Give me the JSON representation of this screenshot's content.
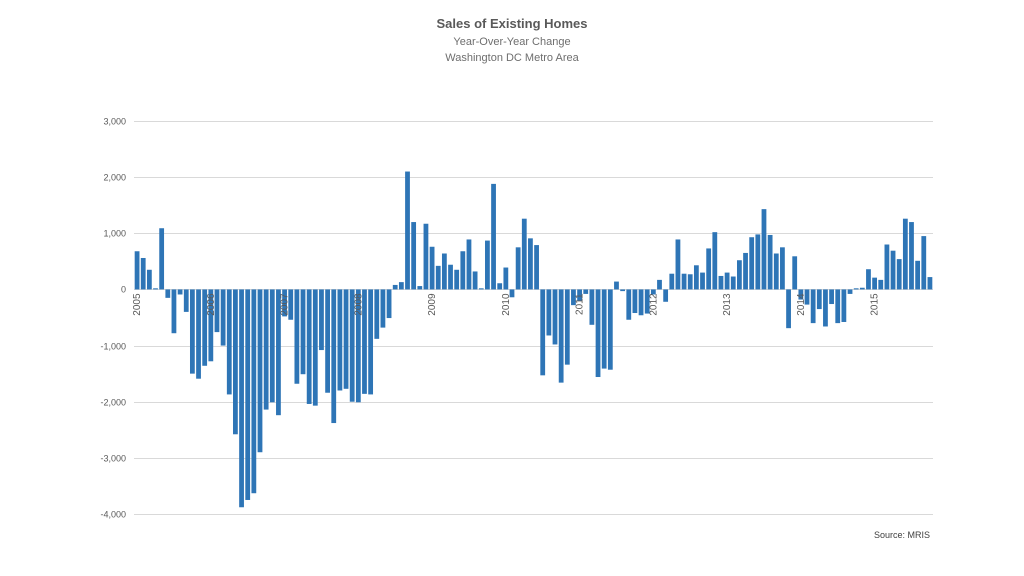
{
  "colors": {
    "bar": "#2e75b6",
    "grid": "#d9d9d9",
    "text": "#595959",
    "background": "#ffffff"
  },
  "chart_data": {
    "type": "bar",
    "title": "Sales of Existing Homes",
    "subtitle": "Year-Over-Year Change",
    "subtitle2": "Washington DC Metro Area",
    "source": "Source: MRIS",
    "ylim": [
      -4000,
      3000
    ],
    "yticks": [
      3000,
      2000,
      1000,
      0,
      -1000,
      -2000,
      -3000,
      -4000
    ],
    "ytick_labels": [
      "3,000",
      "2,000",
      "1,000",
      "0",
      "-1,000",
      "-2,000",
      "-3,000",
      "-4,000"
    ],
    "grid": true,
    "x_tick_labels": [
      {
        "label": "2005",
        "index": 0
      },
      {
        "label": "2006",
        "index": 12
      },
      {
        "label": "2007",
        "index": 24
      },
      {
        "label": "2008",
        "index": 36
      },
      {
        "label": "2009",
        "index": 48
      },
      {
        "label": "2010",
        "index": 60
      },
      {
        "label": "2011",
        "index": 72
      },
      {
        "label": "2012",
        "index": 84
      },
      {
        "label": "2013",
        "index": 96
      },
      {
        "label": "2014",
        "index": 108
      },
      {
        "label": "2015",
        "index": 120
      }
    ],
    "values": [
      680,
      560,
      350,
      20,
      1090,
      -150,
      -780,
      -90,
      -400,
      -1500,
      -1590,
      -1360,
      -1280,
      -760,
      -1000,
      -1870,
      -2580,
      -3880,
      -3750,
      -3630,
      -2900,
      -2140,
      -2010,
      -2240,
      -480,
      -540,
      -1680,
      -1510,
      -2040,
      -2070,
      -1080,
      -1840,
      -2380,
      -1800,
      -1770,
      -2000,
      -2010,
      -1860,
      -1870,
      -880,
      -680,
      -510,
      80,
      130,
      2100,
      1200,
      60,
      1170,
      760,
      420,
      640,
      440,
      350,
      680,
      890,
      320,
      20,
      870,
      1880,
      110,
      390,
      -140,
      750,
      1260,
      910,
      790,
      -1530,
      -820,
      -980,
      -1660,
      -1340,
      -280,
      -200,
      -80,
      -630,
      -1560,
      -1410,
      -1430,
      140,
      -30,
      -540,
      -420,
      -460,
      -430,
      -90,
      170,
      -220,
      280,
      890,
      280,
      270,
      430,
      300,
      730,
      1020,
      240,
      300,
      230,
      520,
      650,
      930,
      980,
      1430,
      970,
      640,
      750,
      -690,
      590,
      -180,
      -270,
      -600,
      -350,
      -660,
      -260,
      -600,
      -580,
      -80,
      20,
      30,
      360,
      210,
      170,
      800,
      690,
      540,
      1260,
      1200,
      510,
      950,
      220
    ]
  }
}
